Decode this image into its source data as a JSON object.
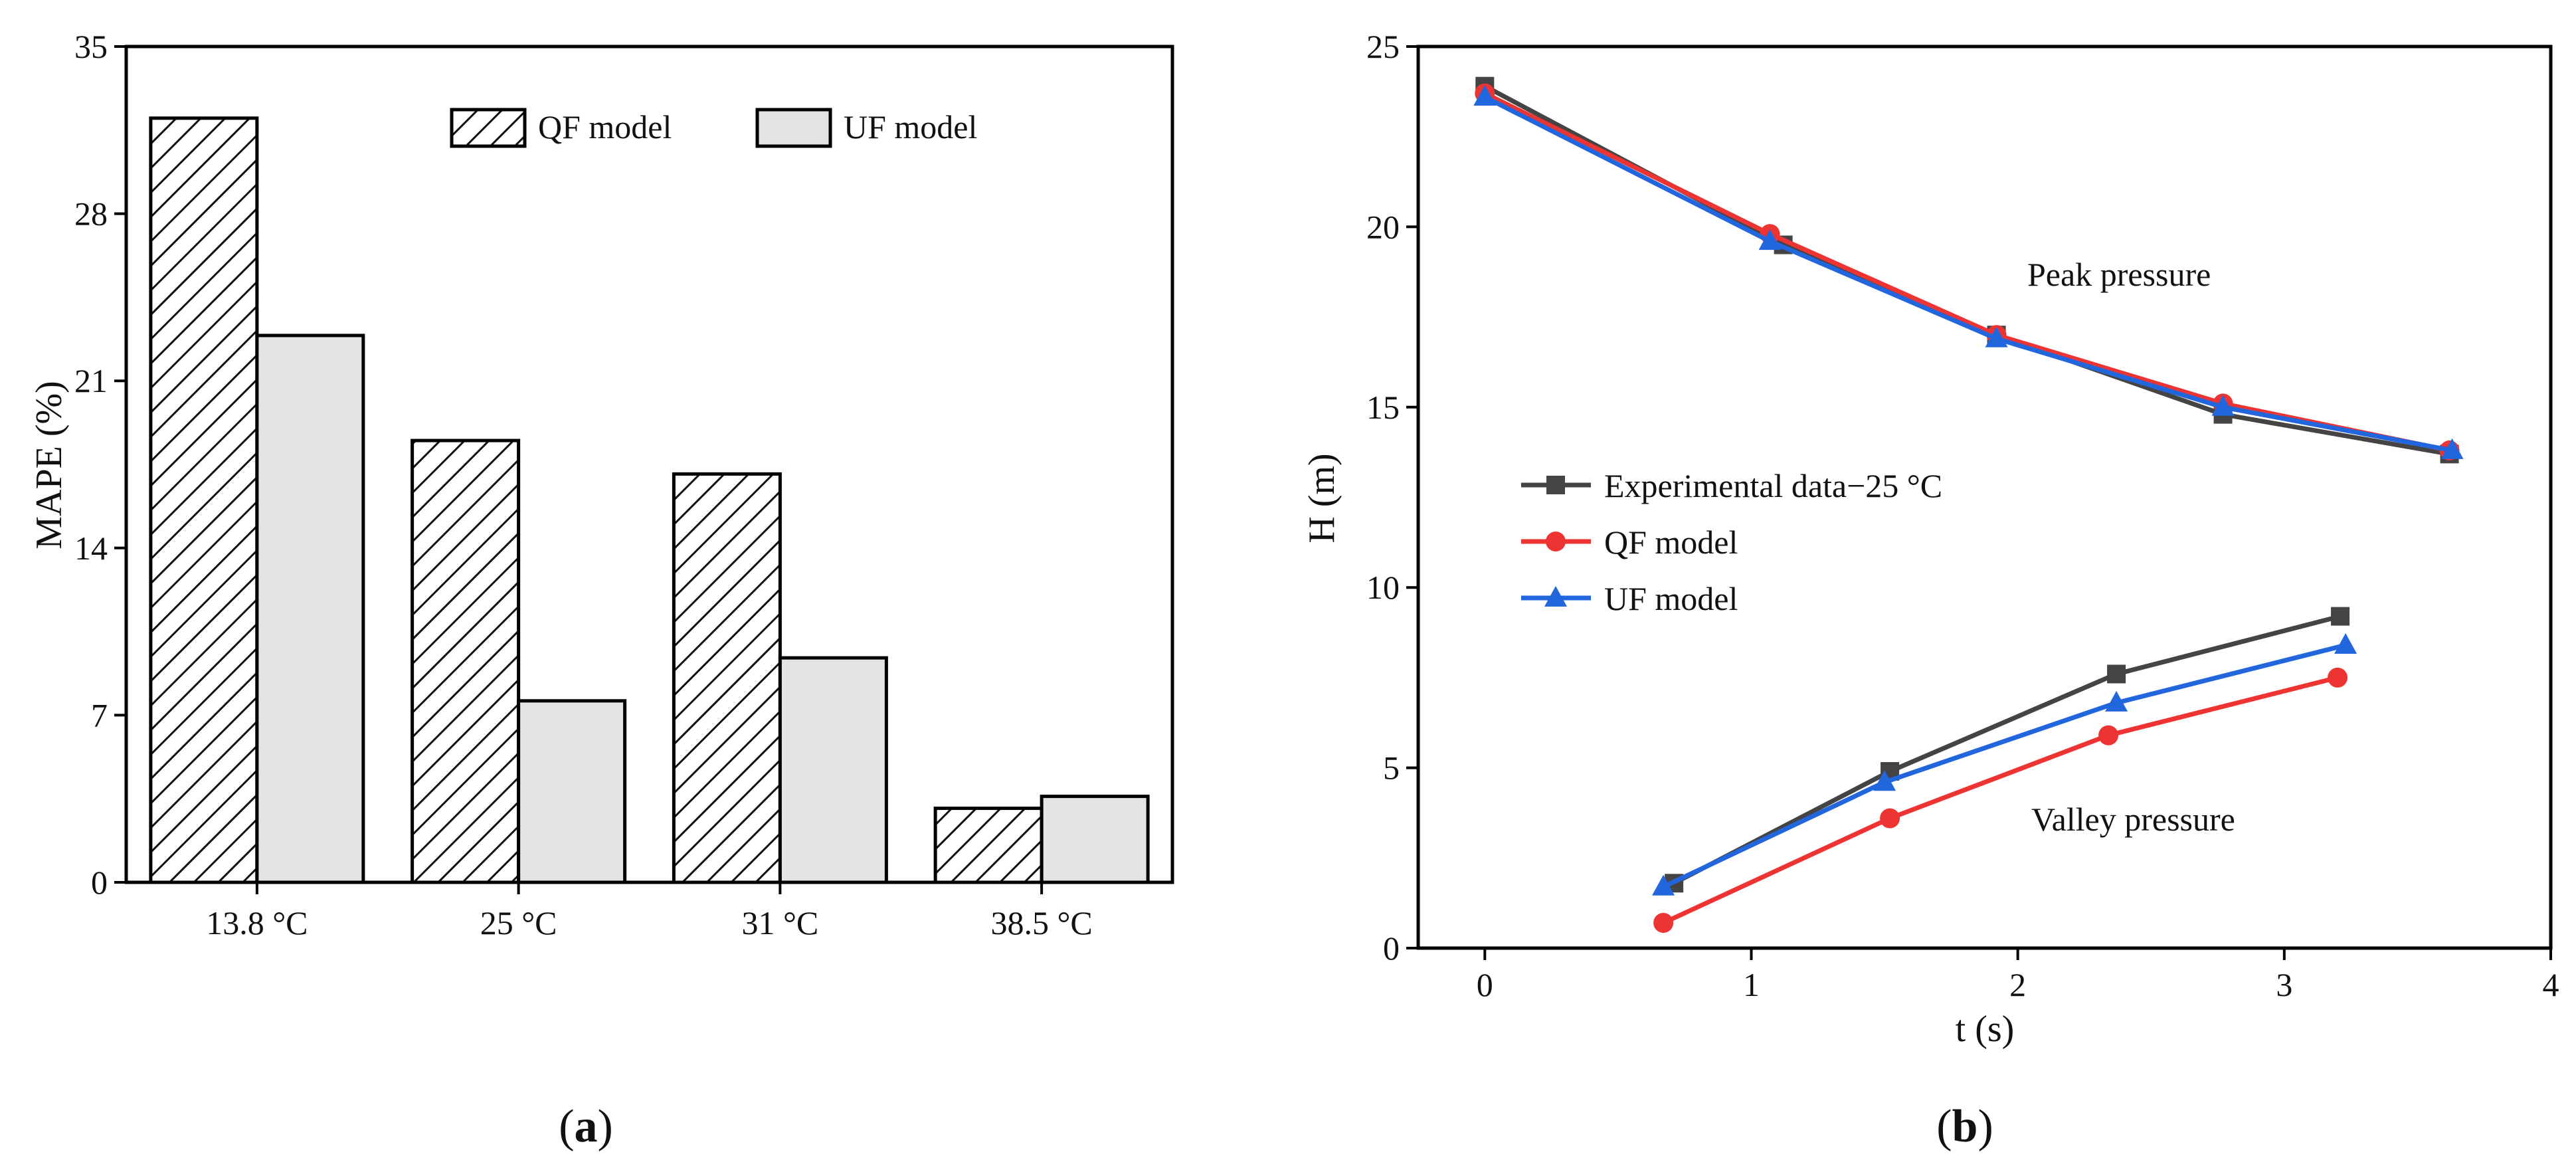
{
  "panels": {
    "a_label": "a",
    "b_label": "b"
  },
  "chart_data": [
    {
      "type": "bar",
      "ylabel": "MAPE (%)",
      "xlabel": "",
      "categories": [
        "13.8 °C",
        "25 °C",
        "31 °C",
        "38.5 °C"
      ],
      "ylim": [
        0,
        35
      ],
      "yticks": [
        0,
        7,
        14,
        21,
        28,
        35
      ],
      "legend_position": "top-right",
      "series": [
        {
          "name": "QF model",
          "pattern": "diagonal-hatch",
          "values": [
            32.0,
            18.5,
            17.1,
            3.1
          ]
        },
        {
          "name": "UF model",
          "pattern": "light-gray-fill",
          "values": [
            22.9,
            7.6,
            9.4,
            3.6
          ]
        }
      ],
      "colors": {
        "hatch": "#111111",
        "uf_fill": "#e4e4e4",
        "edge": "#000000"
      }
    },
    {
      "type": "line",
      "xlabel": "t (s)",
      "ylabel": "H (m)",
      "xlim": [
        -0.25,
        4
      ],
      "ylim": [
        0,
        25
      ],
      "xticks": [
        0,
        1,
        2,
        3,
        4
      ],
      "yticks": [
        0,
        5,
        10,
        15,
        20,
        25
      ],
      "legend_position": "center-left",
      "annotations": [
        "Peak pressure",
        "Valley pressure"
      ],
      "series": [
        {
          "name": "Experimental data−25 °C",
          "marker": "square",
          "color": "#444444",
          "segments": [
            {
              "x": [
                0.0,
                1.12,
                1.92,
                2.77,
                3.62
              ],
              "y": [
                23.9,
                19.5,
                17.0,
                14.8,
                13.7
              ]
            },
            {
              "x": [
                0.71,
                1.52,
                2.37,
                3.21
              ],
              "y": [
                1.8,
                4.9,
                7.6,
                9.2
              ]
            }
          ]
        },
        {
          "name": "QF model",
          "marker": "circle",
          "color": "#ee3333",
          "segments": [
            {
              "x": [
                0.0,
                1.07,
                1.92,
                2.77,
                3.62
              ],
              "y": [
                23.7,
                19.8,
                17.0,
                15.1,
                13.8
              ]
            },
            {
              "x": [
                0.67,
                1.52,
                2.34,
                3.2
              ],
              "y": [
                0.7,
                3.6,
                5.9,
                7.5
              ]
            }
          ]
        },
        {
          "name": "UF model",
          "marker": "triangle",
          "color": "#2266dd",
          "segments": [
            {
              "x": [
                0.0,
                1.07,
                1.92,
                2.77,
                3.63
              ],
              "y": [
                23.6,
                19.6,
                16.9,
                15.0,
                13.8
              ]
            },
            {
              "x": [
                0.67,
                1.5,
                2.37,
                3.23
              ],
              "y": [
                1.7,
                4.6,
                6.8,
                8.4
              ]
            }
          ]
        }
      ]
    }
  ]
}
